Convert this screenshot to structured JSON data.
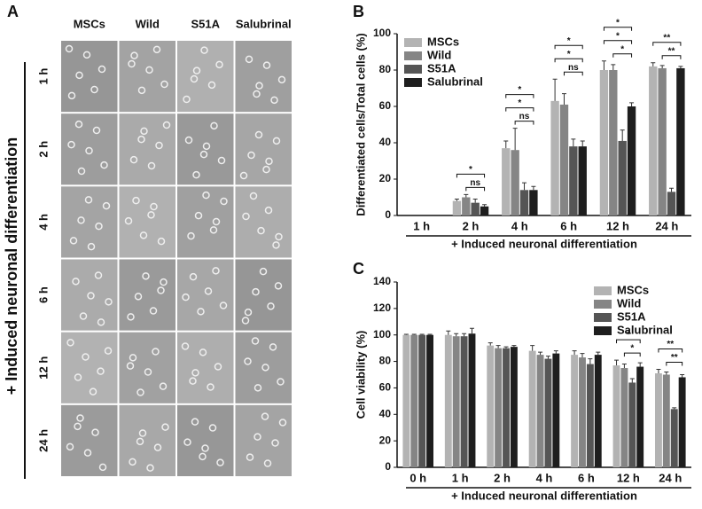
{
  "panel_labels": [
    "A",
    "B",
    "C"
  ],
  "panel_a": {
    "columns": [
      "MSCs",
      "Wild",
      "S51A",
      "Salubrinal"
    ],
    "rows": [
      "1 h",
      "2 h",
      "4 h",
      "6 h",
      "12 h",
      "24 h"
    ],
    "side_label": "+ Induced neuronal differentiation"
  },
  "chart_data": [
    {
      "type": "bar",
      "ylabel": "Differentiated cells/Total cells (%)",
      "xlabel": "+ Induced neuronal differentiation",
      "categories": [
        "1 h",
        "2 h",
        "4 h",
        "6 h",
        "12 h",
        "24 h"
      ],
      "series": [
        {
          "name": "MSCs",
          "color": "#b3b3b3",
          "values": [
            0,
            8,
            37,
            63,
            80,
            82
          ],
          "errors": [
            0,
            1,
            4,
            12,
            5,
            2
          ]
        },
        {
          "name": "Wild",
          "color": "#858585",
          "values": [
            0,
            10,
            36,
            61,
            80,
            81
          ],
          "errors": [
            0,
            1.5,
            12,
            6,
            3,
            1.5
          ]
        },
        {
          "name": "S51A",
          "color": "#555555",
          "values": [
            0,
            7,
            14,
            38,
            41,
            13
          ],
          "errors": [
            0,
            2,
            4,
            4,
            6,
            2
          ]
        },
        {
          "name": "Salubrinal",
          "color": "#1e1e1e",
          "values": [
            0,
            5,
            14,
            38,
            60,
            81
          ],
          "errors": [
            0,
            1,
            2,
            3,
            2,
            1
          ]
        }
      ],
      "significance": [
        [],
        [
          "ns",
          "*"
        ],
        [
          "ns",
          "*",
          "*"
        ],
        [
          "ns",
          "*",
          "*"
        ],
        [
          "*",
          "*",
          "*"
        ],
        [
          "**",
          "**"
        ]
      ],
      "ylim": [
        0,
        100
      ],
      "yticks": [
        0,
        20,
        40,
        60,
        80,
        100
      ],
      "legend": "upper left"
    },
    {
      "type": "bar",
      "ylabel": "Cell viability (%)",
      "xlabel": "+ Induced neuronal differentiation",
      "categories": [
        "0 h",
        "1 h",
        "2 h",
        "4 h",
        "6 h",
        "12 h",
        "24 h"
      ],
      "series": [
        {
          "name": "MSCs",
          "color": "#b3b3b3",
          "values": [
            100,
            100,
            92,
            88,
            85,
            77,
            71
          ],
          "errors": [
            0.5,
            3,
            2,
            4,
            3,
            4,
            3
          ]
        },
        {
          "name": "Wild",
          "color": "#858585",
          "values": [
            100,
            99,
            90,
            85,
            83,
            75,
            70
          ],
          "errors": [
            0.5,
            2,
            2,
            2,
            3,
            3,
            2
          ]
        },
        {
          "name": "S51A",
          "color": "#555555",
          "values": [
            100,
            99,
            90,
            82,
            78,
            64,
            44
          ],
          "errors": [
            0.5,
            2,
            1,
            2,
            4,
            3,
            1
          ]
        },
        {
          "name": "Salubrinal",
          "color": "#1e1e1e",
          "values": [
            100,
            101,
            91,
            86,
            85,
            76,
            68
          ],
          "errors": [
            0.5,
            4,
            1,
            2,
            2,
            3,
            2
          ]
        }
      ],
      "significance": [
        [],
        [],
        [],
        [],
        [],
        [
          "*",
          "*"
        ],
        [
          "**",
          "**"
        ]
      ],
      "ylim": [
        0,
        140
      ],
      "yticks": [
        0,
        20,
        40,
        60,
        80,
        100,
        120,
        140
      ],
      "legend": "upper right"
    }
  ]
}
